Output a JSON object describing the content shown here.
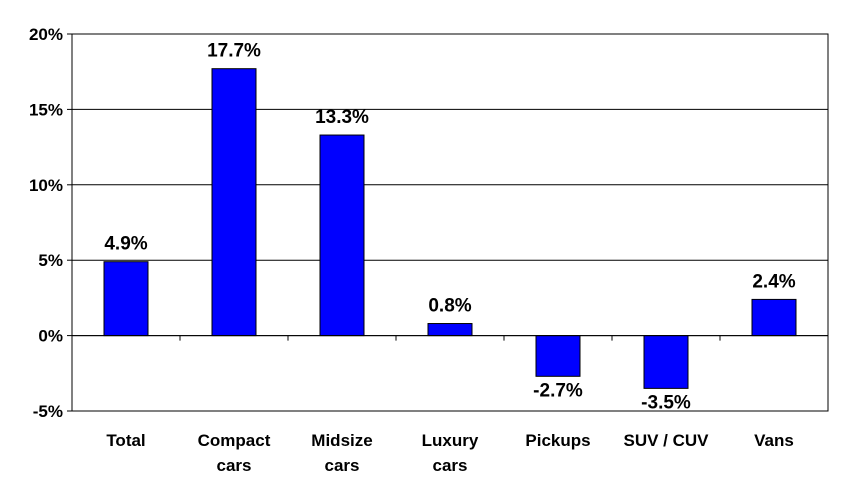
{
  "chart_data": {
    "type": "bar",
    "categories": [
      [
        "Total"
      ],
      [
        "Compact",
        "cars"
      ],
      [
        "Midsize",
        "cars"
      ],
      [
        "Luxury",
        "cars"
      ],
      [
        "Pickups"
      ],
      [
        "SUV / CUV"
      ],
      [
        "Vans"
      ]
    ],
    "values": [
      4.9,
      17.7,
      13.3,
      0.8,
      -2.7,
      -3.5,
      2.4
    ],
    "data_labels": [
      "4.9%",
      "17.7%",
      "13.3%",
      "0.8%",
      "-2.7%",
      "-3.5%",
      "2.4%"
    ],
    "yticks": [
      20,
      15,
      10,
      5,
      0,
      -5
    ],
    "ytick_labels": [
      "20%",
      "15%",
      "10%",
      "5%",
      "0%",
      "-5%"
    ],
    "ylim": [
      -5,
      20
    ],
    "grid": true,
    "bar_color": "#0000FF",
    "bar_edge_color": "#000000"
  }
}
